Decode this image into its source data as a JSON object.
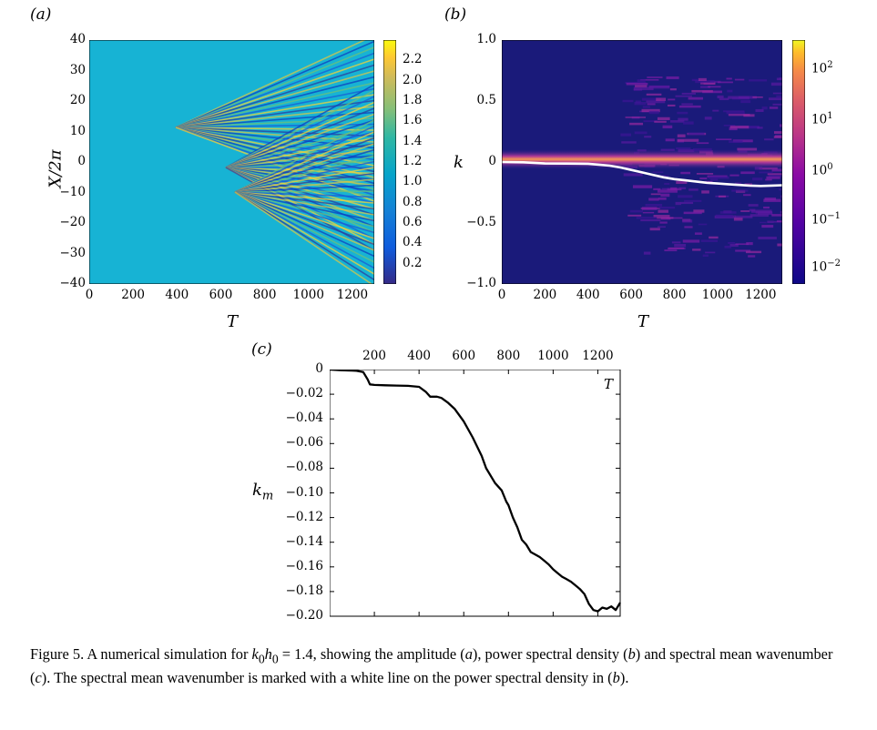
{
  "panels": {
    "a": {
      "label": "(a)",
      "ylabel": "X/2π",
      "xlabel": "T",
      "yticks": [
        "40",
        "30",
        "20",
        "10",
        "0",
        "−10",
        "−20",
        "−30",
        "−40"
      ],
      "xticks": [
        "0",
        "200",
        "400",
        "600",
        "800",
        "1000",
        "1200"
      ],
      "colorbar_ticks": [
        "2.2",
        "2.0",
        "1.8",
        "1.6",
        "1.4",
        "1.2",
        "1.0",
        "0.8",
        "0.6",
        "0.4",
        "0.2"
      ]
    },
    "b": {
      "label": "(b)",
      "ylabel": "k",
      "xlabel": "T",
      "yticks": [
        "1.0",
        "0.5",
        "0",
        "−0.5",
        "−1.0"
      ],
      "xticks": [
        "0",
        "200",
        "400",
        "600",
        "800",
        "1000",
        "1200"
      ],
      "colorbar_ticks": [
        {
          "base": "10",
          "exp": "2"
        },
        {
          "base": "10",
          "exp": "1"
        },
        {
          "base": "10",
          "exp": "0"
        },
        {
          "base": "10",
          "exp": "−1"
        },
        {
          "base": "10",
          "exp": "−2"
        }
      ]
    },
    "c": {
      "label": "(c)",
      "ylabel": "k",
      "ylabel_sub": "m",
      "xlabel": "T",
      "yticks": [
        "0",
        "−0.02",
        "−0.04",
        "−0.06",
        "−0.08",
        "−0.10",
        "−0.12",
        "−0.14",
        "−0.16",
        "−0.18",
        "−0.20"
      ],
      "xticks": [
        "200",
        "400",
        "600",
        "800",
        "1000",
        "1200"
      ]
    }
  },
  "caption": {
    "prefix": "Figure 5.  A numerical simulation for ",
    "math_k": "k",
    "math_k_sub": "0",
    "math_h": "h",
    "math_h_sub": "0",
    "math_val": " = 1.4",
    "mid1": ", showing the amplitude (",
    "a": "a",
    "mid2": "), power spectral density (",
    "b": "b",
    "mid3": ") and spectral mean wavenumber (",
    "c": "c",
    "mid4": "). The spectral mean wavenumber is marked with a white line on the power spectral density in (",
    "b2": "b",
    "end": ")."
  },
  "colors": {
    "amp_background": "#17b3d4",
    "psd_background": "#1a1a7a",
    "mean_line": "#ffffff"
  },
  "chart_data": [
    {
      "type": "heatmap",
      "panel": "a",
      "xlim": [
        0,
        1300
      ],
      "ylim": [
        -40,
        40
      ],
      "colorbar_range": [
        0.0,
        2.4
      ],
      "colormap": "parula"
    },
    {
      "type": "heatmap",
      "panel": "b",
      "xlim": [
        0,
        1300
      ],
      "ylim": [
        -1.0,
        1.0
      ],
      "colorbar_scale": "log",
      "colorbar_range": [
        0.005,
        500
      ],
      "colormap": "plasma",
      "mean_line": {
        "x": [
          0,
          100,
          200,
          300,
          400,
          450,
          500,
          550,
          600,
          650,
          700,
          750,
          800,
          850,
          900,
          950,
          1000,
          1050,
          1100,
          1150,
          1200,
          1250,
          1300
        ],
        "y": [
          0,
          -0.002,
          -0.012,
          -0.013,
          -0.014,
          -0.022,
          -0.03,
          -0.045,
          -0.065,
          -0.085,
          -0.105,
          -0.125,
          -0.14,
          -0.15,
          -0.16,
          -0.17,
          -0.176,
          -0.182,
          -0.188,
          -0.193,
          -0.196,
          -0.193,
          -0.19
        ]
      }
    },
    {
      "type": "line",
      "panel": "c",
      "xlim": [
        0,
        1300
      ],
      "ylim": [
        -0.2,
        0
      ],
      "series": [
        {
          "x": [
            0,
            50,
            100,
            120,
            150,
            170,
            180,
            200,
            250,
            300,
            350,
            400,
            430,
            450,
            480,
            500,
            530,
            560,
            600,
            640,
            680,
            700,
            740,
            770,
            790,
            800,
            820,
            840,
            860,
            880,
            900,
            920,
            940,
            960,
            980,
            1000,
            1020,
            1040,
            1060,
            1080,
            1100,
            1120,
            1140,
            1160,
            1180,
            1200,
            1220,
            1240,
            1260,
            1280,
            1300
          ],
          "y": [
            0,
            -0.0005,
            -0.0008,
            -0.001,
            -0.002,
            -0.008,
            -0.012,
            -0.0125,
            -0.0128,
            -0.013,
            -0.0132,
            -0.014,
            -0.018,
            -0.022,
            -0.022,
            -0.023,
            -0.027,
            -0.032,
            -0.042,
            -0.055,
            -0.07,
            -0.08,
            -0.092,
            -0.098,
            -0.107,
            -0.11,
            -0.12,
            -0.128,
            -0.138,
            -0.142,
            -0.148,
            -0.15,
            -0.152,
            -0.155,
            -0.158,
            -0.162,
            -0.165,
            -0.168,
            -0.17,
            -0.172,
            -0.175,
            -0.178,
            -0.182,
            -0.19,
            -0.195,
            -0.196,
            -0.193,
            -0.194,
            -0.192,
            -0.195,
            -0.189
          ]
        }
      ]
    }
  ]
}
